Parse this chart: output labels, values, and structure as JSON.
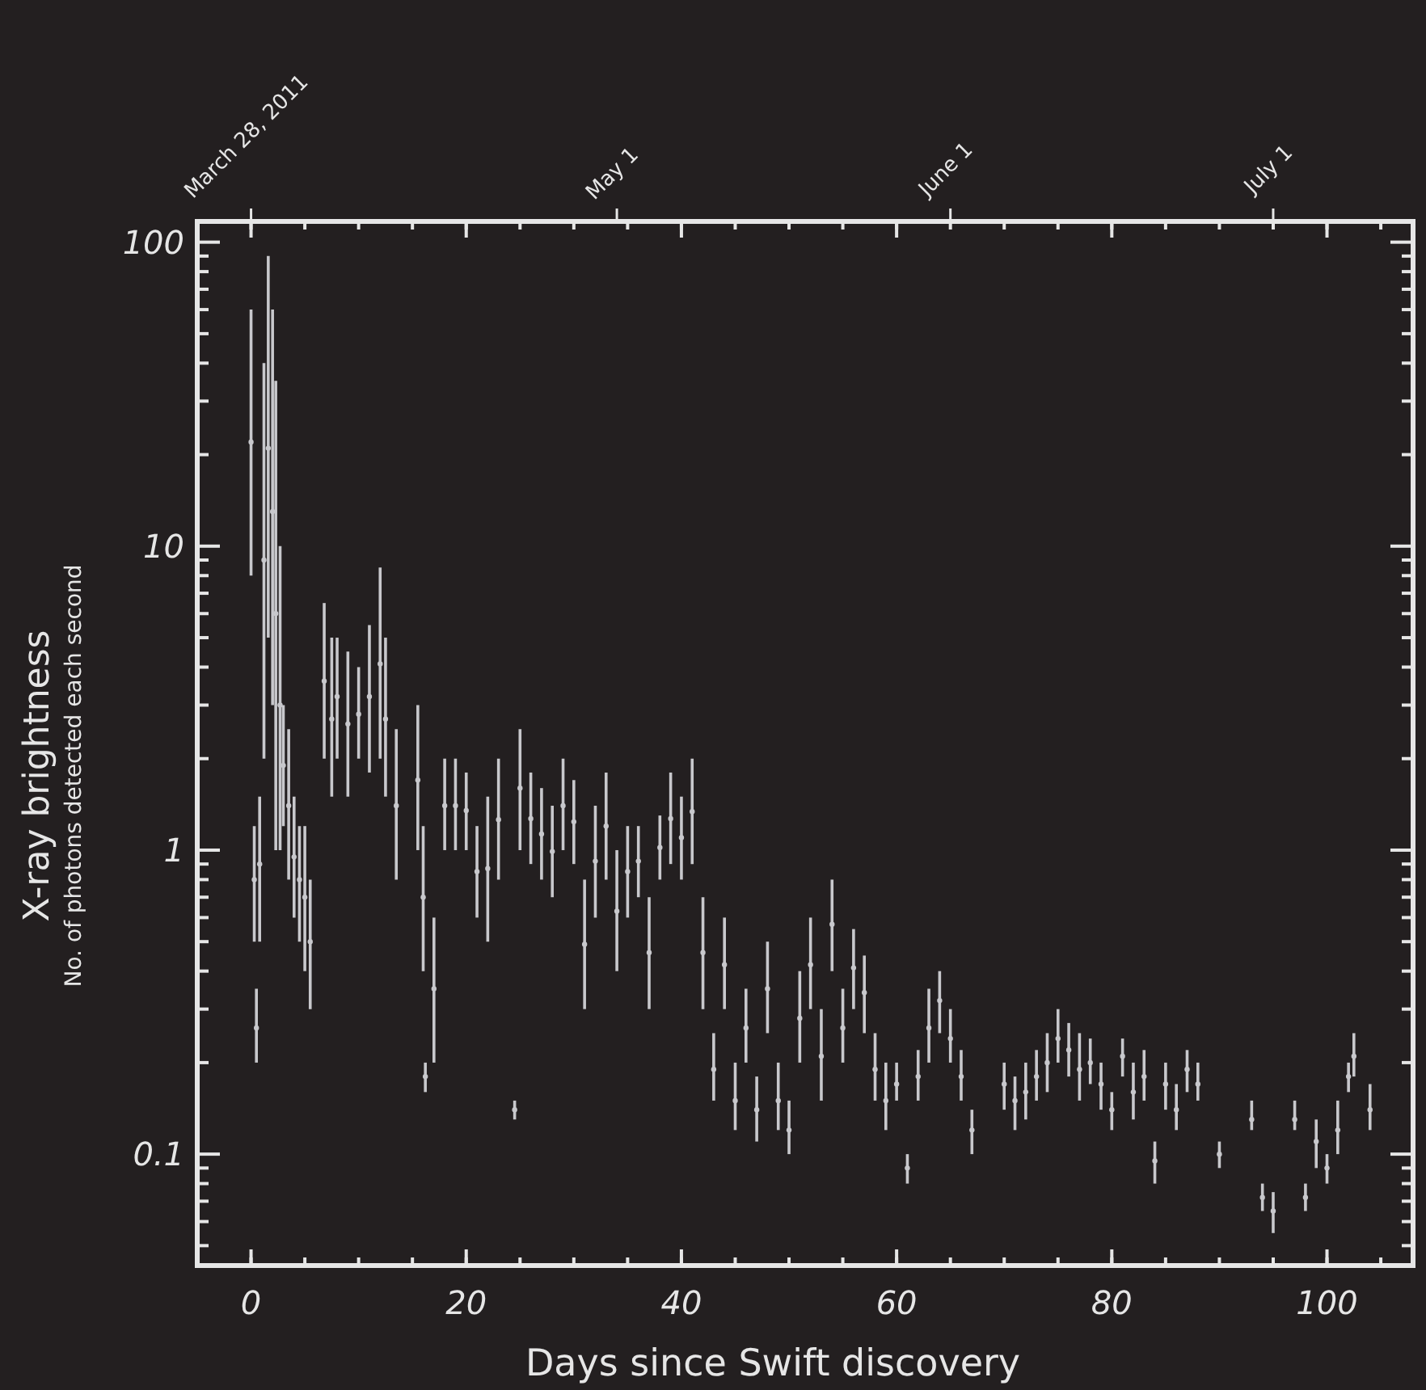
{
  "chart_data": {
    "type": "scatter",
    "xlabel": "Days since Swift discovery",
    "ylabel": "X-ray brightness\nNo. of photons detected each second",
    "log": "y",
    "marker": "circle",
    "grid": false,
    "xlim": [
      -5,
      108
    ],
    "xticks": [
      0,
      20,
      40,
      60,
      80,
      100
    ],
    "x2lim": [
      "2011-03-23",
      "2011-07-14"
    ],
    "x2ticks": [
      {
        "value": "2011-03-28",
        "label": "March 28, 2011"
      },
      {
        "value": "2011-05-01",
        "label": "May 1"
      },
      {
        "value": "2011-06-01",
        "label": "June 1"
      },
      {
        "value": "2011-07-01",
        "label": "July 1"
      }
    ],
    "ylim": [
      0.043,
      117
    ],
    "yticks": [
      0.1,
      1,
      10,
      100
    ],
    "series": [
      {
        "color": "#c8c8cc",
        "x": [
          0,
          0.3,
          0.5,
          0.8,
          1.2,
          1.6,
          2,
          2.3,
          2.7,
          3,
          3.5,
          4,
          4.5,
          5,
          5.5,
          6.8,
          7.5,
          8,
          9,
          10,
          11,
          12,
          12.5,
          13.5,
          15.5,
          16,
          16.2,
          17,
          18,
          19,
          20,
          21,
          22,
          23,
          24.5,
          25,
          26,
          27,
          28,
          29,
          30,
          31,
          32,
          33,
          34,
          35,
          36,
          37,
          38,
          39,
          40,
          41,
          42,
          43,
          44,
          45,
          46,
          47,
          48,
          49,
          50,
          51,
          52,
          53,
          54,
          55,
          56,
          57,
          58,
          59,
          60,
          61,
          62,
          63,
          64,
          65,
          66,
          67,
          70,
          71,
          72,
          73,
          74,
          75,
          76,
          77,
          78,
          79,
          80,
          81,
          82,
          83,
          84,
          85,
          86,
          87,
          88,
          90,
          93,
          94,
          95,
          97,
          98,
          99,
          100,
          101,
          102,
          102.5,
          104
        ],
        "values": [
          22,
          0.8,
          0.26,
          0.9,
          9,
          21,
          13,
          6,
          3,
          1.9,
          1.4,
          0.95,
          0.8,
          0.7,
          0.5,
          3.6,
          2.7,
          3.2,
          2.6,
          2.8,
          3.2,
          4.1,
          2.7,
          1.4,
          1.7,
          0.7,
          0.18,
          0.35,
          1.4,
          1.4,
          1.35,
          0.85,
          0.87,
          1.26,
          0.14,
          1.6,
          1.27,
          1.13,
          0.99,
          1.4,
          1.24,
          0.49,
          0.92,
          1.2,
          0.63,
          0.85,
          0.92,
          0.46,
          1.02,
          1.27,
          1.1,
          1.34,
          0.46,
          0.19,
          0.42,
          0.15,
          0.26,
          0.14,
          0.35,
          0.15,
          0.12,
          0.28,
          0.42,
          0.21,
          0.57,
          0.26,
          0.41,
          0.34,
          0.19,
          0.15,
          0.17,
          0.09,
          0.18,
          0.26,
          0.32,
          0.24,
          0.18,
          0.12,
          0.17,
          0.15,
          0.16,
          0.18,
          0.2,
          0.24,
          0.22,
          0.19,
          0.2,
          0.17,
          0.14,
          0.21,
          0.16,
          0.18,
          0.095,
          0.17,
          0.14,
          0.19,
          0.17,
          0.1,
          0.13,
          0.072,
          0.065,
          0.13,
          0.072,
          0.11,
          0.09,
          0.12,
          0.18,
          0.21,
          0.14
        ],
        "errors": [
          [
            8,
            60
          ],
          [
            0.5,
            1.2
          ],
          [
            0.2,
            0.35
          ],
          [
            0.5,
            1.5
          ],
          [
            2,
            40
          ],
          [
            5,
            90
          ],
          [
            3,
            60
          ],
          [
            1,
            35
          ],
          [
            1,
            10
          ],
          [
            1.2,
            3
          ],
          [
            0.8,
            2.5
          ],
          [
            0.6,
            1.5
          ],
          [
            0.5,
            1.2
          ],
          [
            0.4,
            1.2
          ],
          [
            0.3,
            0.8
          ],
          [
            2,
            6.5
          ],
          [
            1.5,
            5
          ],
          [
            2,
            5
          ],
          [
            1.5,
            4.5
          ],
          [
            2,
            4
          ],
          [
            1.8,
            5.5
          ],
          [
            2,
            8.5
          ],
          [
            1.5,
            5
          ],
          [
            0.8,
            2.5
          ],
          [
            1,
            3
          ],
          [
            0.4,
            1.2
          ],
          [
            0.16,
            0.2
          ],
          [
            0.2,
            0.6
          ],
          [
            1,
            2
          ],
          [
            1,
            2
          ],
          [
            1,
            1.8
          ],
          [
            0.6,
            1.2
          ],
          [
            0.5,
            1.5
          ],
          [
            0.8,
            2
          ],
          [
            0.13,
            0.15
          ],
          [
            1,
            2.5
          ],
          [
            0.9,
            1.8
          ],
          [
            0.8,
            1.6
          ],
          [
            0.7,
            1.4
          ],
          [
            1,
            2
          ],
          [
            0.9,
            1.7
          ],
          [
            0.3,
            0.8
          ],
          [
            0.6,
            1.4
          ],
          [
            0.8,
            1.8
          ],
          [
            0.4,
            1
          ],
          [
            0.6,
            1.2
          ],
          [
            0.7,
            1.2
          ],
          [
            0.3,
            0.7
          ],
          [
            0.8,
            1.3
          ],
          [
            0.9,
            1.8
          ],
          [
            0.8,
            1.5
          ],
          [
            0.9,
            2
          ],
          [
            0.3,
            0.7
          ],
          [
            0.15,
            0.25
          ],
          [
            0.3,
            0.6
          ],
          [
            0.12,
            0.2
          ],
          [
            0.2,
            0.35
          ],
          [
            0.11,
            0.18
          ],
          [
            0.25,
            0.5
          ],
          [
            0.12,
            0.2
          ],
          [
            0.1,
            0.15
          ],
          [
            0.2,
            0.4
          ],
          [
            0.3,
            0.6
          ],
          [
            0.15,
            0.3
          ],
          [
            0.4,
            0.8
          ],
          [
            0.2,
            0.35
          ],
          [
            0.3,
            0.55
          ],
          [
            0.25,
            0.45
          ],
          [
            0.15,
            0.25
          ],
          [
            0.12,
            0.2
          ],
          [
            0.15,
            0.2
          ],
          [
            0.08,
            0.1
          ],
          [
            0.15,
            0.22
          ],
          [
            0.2,
            0.35
          ],
          [
            0.25,
            0.4
          ],
          [
            0.2,
            0.3
          ],
          [
            0.15,
            0.22
          ],
          [
            0.1,
            0.14
          ],
          [
            0.14,
            0.2
          ],
          [
            0.12,
            0.18
          ],
          [
            0.13,
            0.2
          ],
          [
            0.15,
            0.22
          ],
          [
            0.16,
            0.25
          ],
          [
            0.2,
            0.3
          ],
          [
            0.18,
            0.27
          ],
          [
            0.15,
            0.25
          ],
          [
            0.17,
            0.24
          ],
          [
            0.14,
            0.2
          ],
          [
            0.12,
            0.16
          ],
          [
            0.18,
            0.24
          ],
          [
            0.13,
            0.2
          ],
          [
            0.15,
            0.22
          ],
          [
            0.08,
            0.11
          ],
          [
            0.14,
            0.2
          ],
          [
            0.12,
            0.17
          ],
          [
            0.16,
            0.22
          ],
          [
            0.15,
            0.2
          ],
          [
            0.09,
            0.11
          ],
          [
            0.12,
            0.15
          ],
          [
            0.065,
            0.08
          ],
          [
            0.055,
            0.075
          ],
          [
            0.12,
            0.15
          ],
          [
            0.065,
            0.08
          ],
          [
            0.09,
            0.13
          ],
          [
            0.08,
            0.1
          ],
          [
            0.1,
            0.15
          ],
          [
            0.16,
            0.2
          ],
          [
            0.18,
            0.25
          ],
          [
            0.12,
            0.17
          ]
        ]
      }
    ]
  }
}
